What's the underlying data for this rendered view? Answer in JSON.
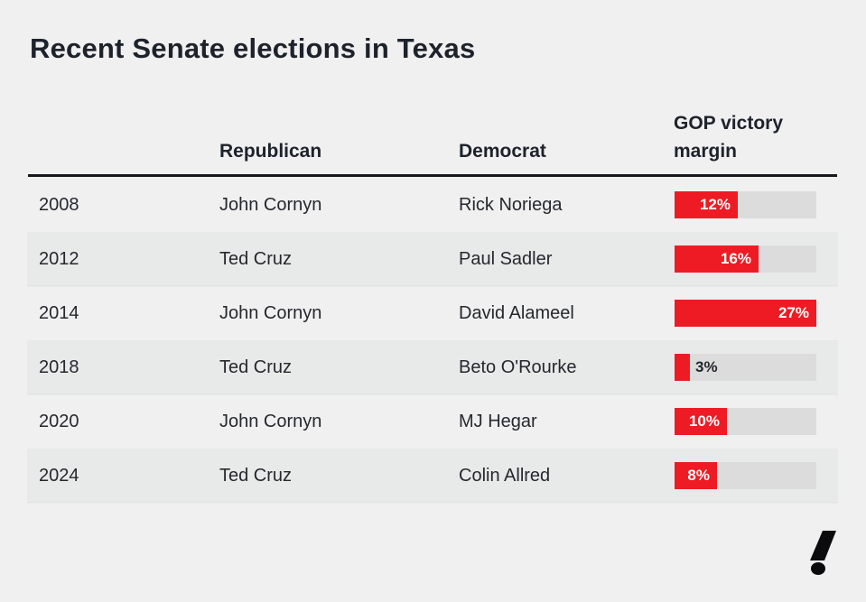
{
  "title": "Recent Senate elections in Texas",
  "colors": {
    "background": "#f0f0f1",
    "accent_red": "#ee1b24",
    "bar_track": "#dcdcdd",
    "row_stripe": "#e8e9e9",
    "text_dark": "#1d222b",
    "header_rule": "#17181c"
  },
  "table": {
    "columns": {
      "republican": "Republican",
      "democrat": "Democrat",
      "margin": "GOP victory margin"
    },
    "bar_max_pct": 27,
    "rows": [
      {
        "year": "2008",
        "republican": "John Cornyn",
        "democrat": "Rick Noriega",
        "margin_pct": 12,
        "margin_label": "12%",
        "striped": false
      },
      {
        "year": "2012",
        "republican": "Ted Cruz",
        "democrat": "Paul Sadler",
        "margin_pct": 16,
        "margin_label": "16%",
        "striped": true
      },
      {
        "year": "2014",
        "republican": "John Cornyn",
        "democrat": "David Alameel",
        "margin_pct": 27,
        "margin_label": "27%",
        "striped": false
      },
      {
        "year": "2018",
        "republican": "Ted Cruz",
        "democrat": "Beto O'Rourke",
        "margin_pct": 3,
        "margin_label": "3%",
        "striped": true
      },
      {
        "year": "2020",
        "republican": "John Cornyn",
        "democrat": "MJ Hegar",
        "margin_pct": 10,
        "margin_label": "10%",
        "striped": false
      },
      {
        "year": "2024",
        "republican": "Ted Cruz",
        "democrat": "Colin Allred",
        "margin_pct": 8,
        "margin_label": "8%",
        "striped": true
      }
    ]
  },
  "logo": {
    "glyph": "!"
  },
  "chart_data": {
    "type": "bar",
    "title": "Recent Senate elections in Texas",
    "categories": [
      "2008",
      "2012",
      "2014",
      "2018",
      "2020",
      "2024"
    ],
    "values": [
      12,
      16,
      27,
      3,
      10,
      8
    ],
    "value_labels": [
      "12%",
      "16%",
      "27%",
      "3%",
      "10%",
      "8%"
    ],
    "series_meta": {
      "republican_candidates": [
        "John Cornyn",
        "Ted Cruz",
        "John Cornyn",
        "Ted Cruz",
        "John Cornyn",
        "Ted Cruz"
      ],
      "democrat_candidates": [
        "Rick Noriega",
        "Paul Sadler",
        "David Alameel",
        "Beto O'Rourke",
        "MJ Hegar",
        "Colin Allred"
      ]
    },
    "xlabel": "",
    "ylabel": "GOP victory margin",
    "xlim": [
      0,
      27
    ],
    "grid": false,
    "legend_position": "none",
    "orientation": "horizontal"
  }
}
